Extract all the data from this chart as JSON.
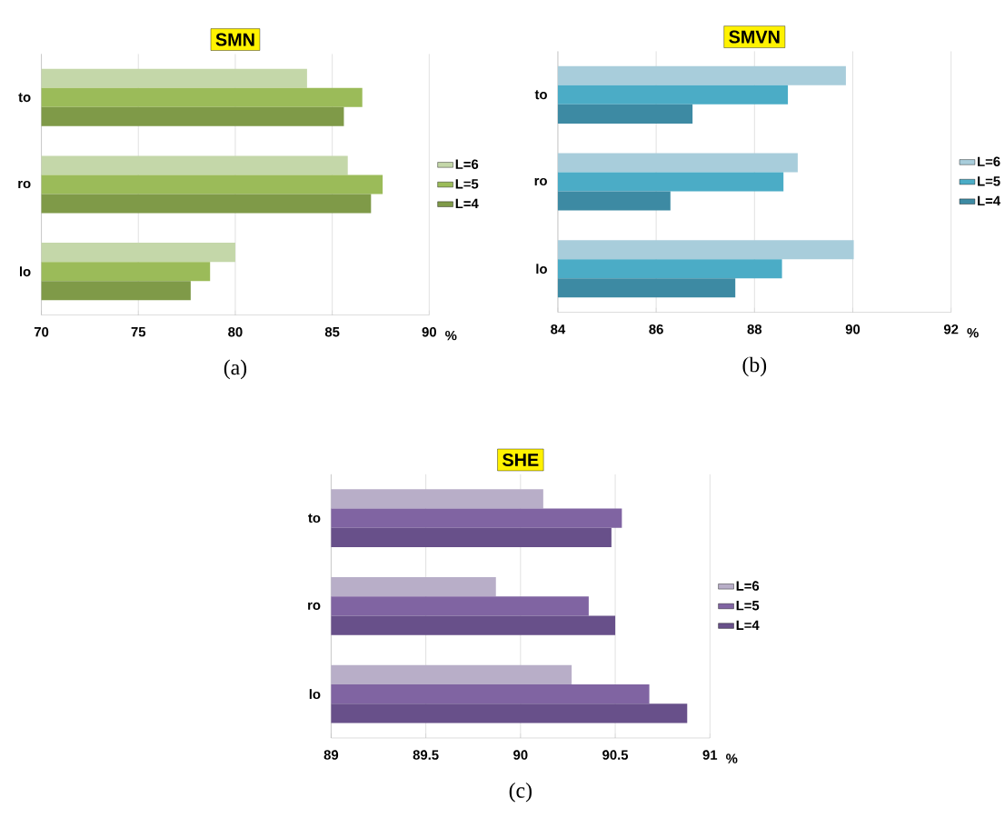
{
  "chart_data": [
    {
      "type": "bar",
      "orientation": "horizontal",
      "title": "SMN",
      "xlabel": "%",
      "categories": [
        "to",
        "ro",
        "lo"
      ],
      "series": [
        {
          "name": "L=6",
          "color": "#c4d7a9",
          "values": [
            83.7,
            85.8,
            80.0
          ]
        },
        {
          "name": "L=5",
          "color": "#9bbb59",
          "values": [
            86.55,
            87.6,
            78.7
          ]
        },
        {
          "name": "L=4",
          "color": "#7f9a48",
          "values": [
            85.6,
            87.0,
            77.7
          ]
        }
      ],
      "xlim": [
        70,
        90
      ],
      "xticks": [
        70,
        75,
        80,
        85,
        90
      ],
      "grid": "x",
      "legend": "right",
      "annotations": [
        "(a)"
      ]
    },
    {
      "type": "bar",
      "orientation": "horizontal",
      "title": "SMVN",
      "xlabel": "%",
      "categories": [
        "to",
        "ro",
        "lo"
      ],
      "series": [
        {
          "name": "L=6",
          "color": "#a8cddb",
          "values": [
            89.86,
            88.88,
            90.02
          ]
        },
        {
          "name": "L=5",
          "color": "#4bacc6",
          "values": [
            88.68,
            88.59,
            88.56
          ]
        },
        {
          "name": "L=4",
          "color": "#3d8aa3",
          "values": [
            86.74,
            86.29,
            87.61
          ]
        }
      ],
      "xlim": [
        84,
        92
      ],
      "xticks": [
        84,
        86,
        88,
        90,
        92
      ],
      "grid": "x",
      "legend": "right",
      "annotations": [
        "(b)"
      ]
    },
    {
      "type": "bar",
      "orientation": "horizontal",
      "title": "SHE",
      "xlabel": "%",
      "categories": [
        "to",
        "ro",
        "lo"
      ],
      "series": [
        {
          "name": "L=6",
          "color": "#b8aec8",
          "values": [
            90.12,
            89.87,
            90.27
          ]
        },
        {
          "name": "L=5",
          "color": "#8064a2",
          "values": [
            90.535,
            90.36,
            90.68
          ]
        },
        {
          "name": "L=4",
          "color": "#68508a",
          "values": [
            90.48,
            90.5,
            90.88
          ]
        }
      ],
      "xlim": [
        89,
        91
      ],
      "xticks": [
        89,
        89.5,
        90,
        90.5,
        91
      ],
      "grid": "x",
      "legend": "right",
      "annotations": [
        "(c)"
      ]
    }
  ]
}
